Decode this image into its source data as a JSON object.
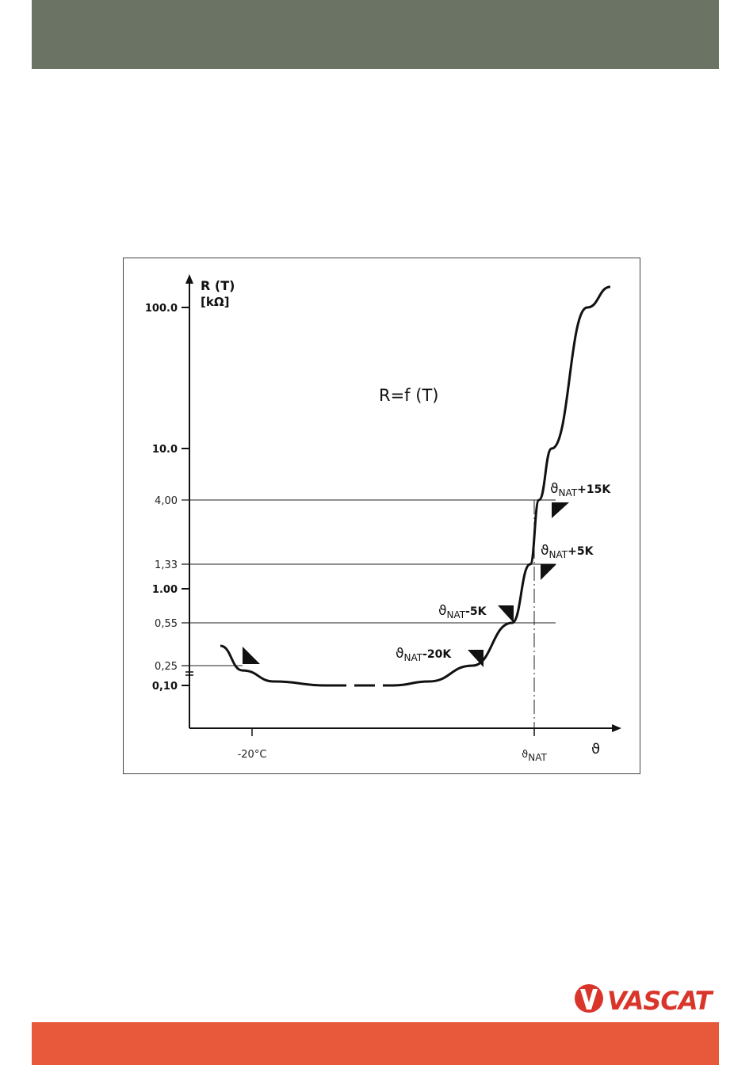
{
  "colors": {
    "top_band": "#6a7364",
    "bottom_band": "#e8583a",
    "logo_red": "#d9352a",
    "ink": "#111111"
  },
  "logo": {
    "text": "VASCAT",
    "icon": "vascat-v-logo-icon"
  },
  "chart_data": {
    "type": "line",
    "title": "R=f (T)",
    "ylabel": "R (T)",
    "yunit": "[kΩ]",
    "xlabel": "ϑ",
    "y_scale": "log",
    "y_ticks_bold": [
      "100.0",
      "10.0",
      "1.00",
      "0,10"
    ],
    "y_ticks_light": [
      "4,00",
      "1,33",
      "0,55",
      "0,25"
    ],
    "y_tick_values": {
      "100.0": 100,
      "10.0": 10,
      "4,00": 4,
      "1,33": 1.33,
      "1.00": 1,
      "0,55": 0.55,
      "0,25": 0.25,
      "0,10": 0.1
    },
    "x_ticks": [
      "-20°C",
      "ϑNAT"
    ],
    "x_tick_marks": [
      {
        "label": "-20°C",
        "sub": ""
      },
      {
        "label": "ϑ",
        "sub": "NAT"
      }
    ],
    "annotations": [
      {
        "prefix": "ϑ",
        "sub": "NAT",
        "suffix": "+15K"
      },
      {
        "prefix": "ϑ",
        "sub": "NAT",
        "suffix": "+5K"
      },
      {
        "prefix": "ϑ",
        "sub": "NAT",
        "suffix": "-5K"
      },
      {
        "prefix": "ϑ",
        "sub": "NAT",
        "suffix": "-20K"
      }
    ],
    "series": [
      {
        "style": "solid-with-dashed-gap",
        "points_r_kohm": [
          0.36,
          0.2,
          0.12,
          0.1,
          0.1,
          0.1,
          0.12,
          0.25,
          0.55,
          1.33,
          4.0,
          10.0,
          100.0,
          140.0
        ]
      }
    ],
    "grid": false,
    "legend": "none"
  }
}
